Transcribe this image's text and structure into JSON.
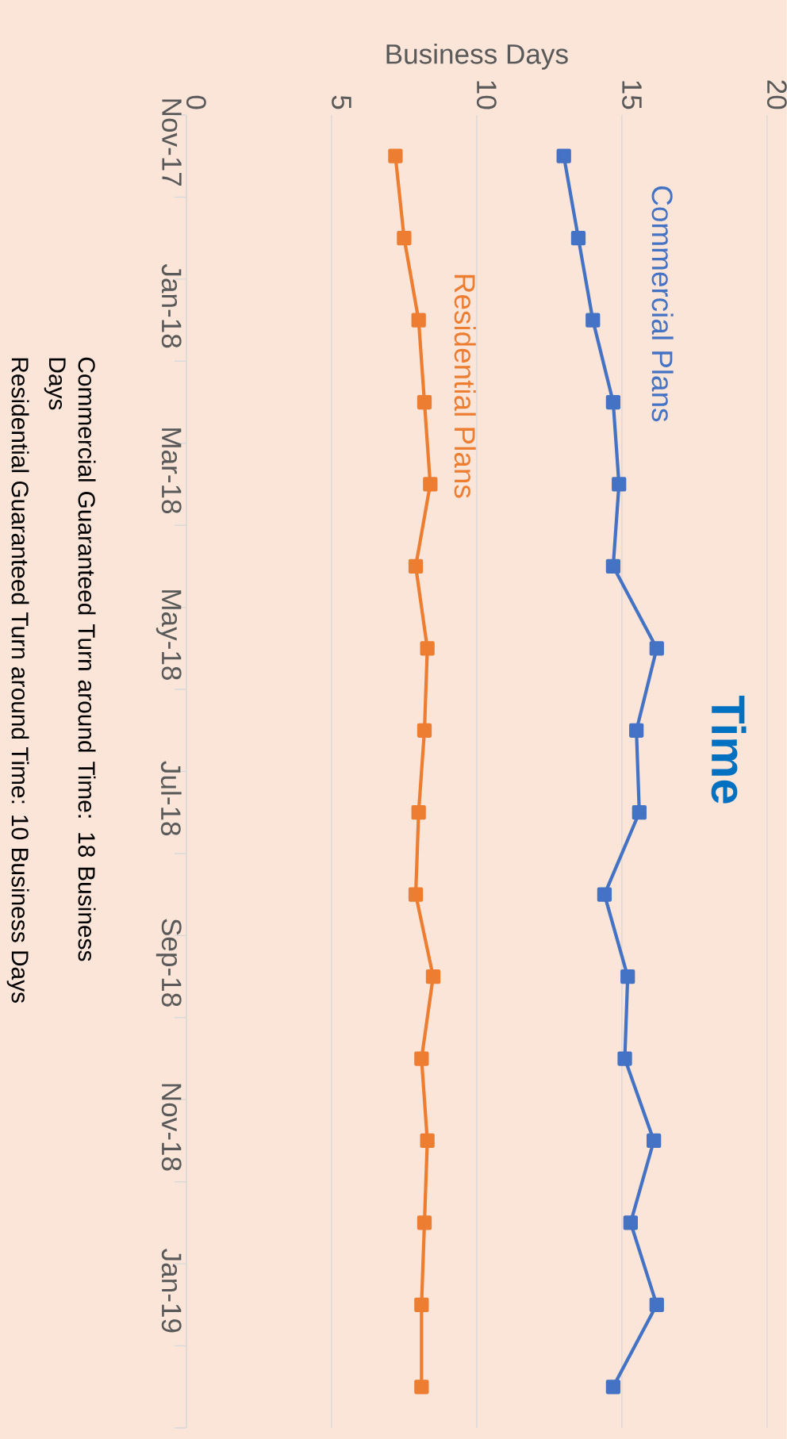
{
  "chart_data": {
    "type": "line",
    "orientation": "horizontal",
    "title": "Time",
    "xlabel": "Business Days",
    "categories": [
      "Nov-17",
      null,
      "Jan-18",
      null,
      "Mar-18",
      null,
      "May-18",
      null,
      "Jul-18",
      null,
      "Sep-18",
      null,
      "Nov-18",
      null,
      "Jan-19",
      null
    ],
    "series": [
      {
        "name": "Commercial Plans",
        "color": "#4472c4",
        "values": [
          13.0,
          13.5,
          14.0,
          14.7,
          14.9,
          14.7,
          16.2,
          15.5,
          15.6,
          14.4,
          15.2,
          15.1,
          16.1,
          15.3,
          16.2,
          14.7
        ]
      },
      {
        "name": "Residential Plans",
        "color": "#ed7d31",
        "values": [
          7.2,
          7.5,
          8.0,
          8.2,
          8.4,
          7.9,
          8.3,
          8.2,
          8.0,
          7.9,
          8.5,
          8.1,
          8.3,
          8.2,
          8.1,
          8.1
        ]
      }
    ],
    "xlim": [
      0,
      20
    ],
    "xticks": [
      0,
      5,
      10,
      15,
      20
    ],
    "grid": "x",
    "legend": false,
    "marker": "square",
    "line_style": "solid",
    "annotations": [
      "Commercial Guaranteed Turn around Time: 18 Business Days",
      "Residential Guaranteed Turn around Time: 10 Business Days"
    ]
  }
}
